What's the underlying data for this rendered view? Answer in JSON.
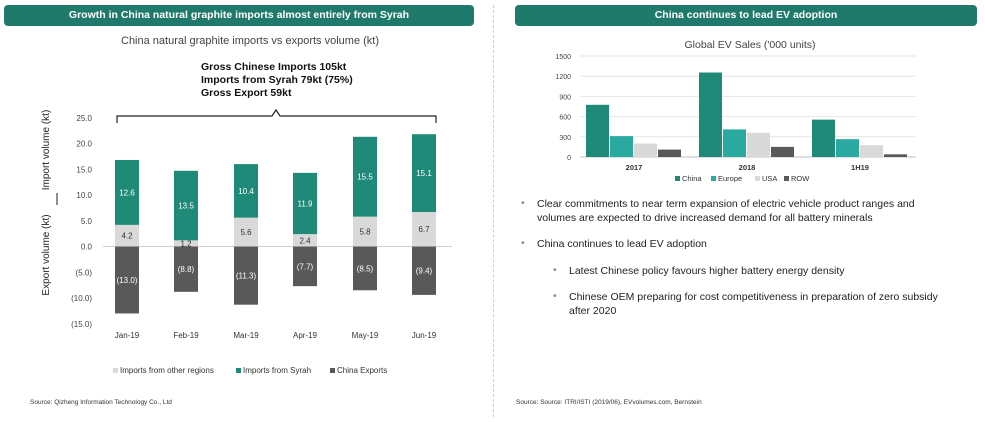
{
  "left_panel": {
    "header": "Growth in China natural graphite imports almost entirely from Syrah",
    "source": "Source:  Qizheng Information Technology Co., Ltd"
  },
  "right_panel": {
    "header": "China continues to lead EV adoption",
    "source": "Source:  Source: ITRI/ISTI (2019/06), EVvolumes.com, Bernstein",
    "bullets": [
      {
        "level": 1,
        "text": "Clear commitments to near term expansion of electric vehicle product ranges and volumes are expected to drive increased demand for all battery minerals"
      },
      {
        "level": 1,
        "text": "China continues to lead EV adoption"
      },
      {
        "level": 2,
        "text": "Latest Chinese policy favours higher battery energy density"
      },
      {
        "level": 2,
        "text": "Chinese OEM preparing for cost competitiveness in preparation of zero subsidy after 2020"
      }
    ]
  },
  "chart_data": [
    {
      "type": "bar",
      "stacked": true,
      "title": "China natural graphite imports vs exports volume (kt)",
      "annotation": [
        "Gross Chinese Imports 105kt",
        "Imports from Syrah 79kt (75%)",
        "Gross Export 59kt"
      ],
      "ylabel_top": "Import volume (kt)",
      "ylabel_bottom": "Export volume (kt)",
      "categories": [
        "Jan-19",
        "Feb-19",
        "Mar-19",
        "Apr-19",
        "May-19",
        "Jun-19"
      ],
      "ylim": [
        -15,
        25
      ],
      "yticks": [
        "25.0",
        "20.0",
        "15.0",
        "10.0",
        "5.0",
        "0.0",
        "(5.0)",
        "(10.0)",
        "(15.0)"
      ],
      "series": [
        {
          "name": "Imports from other regions",
          "color": "#d9d9d9",
          "values": [
            4.2,
            1.2,
            5.6,
            2.4,
            5.8,
            6.7
          ],
          "labels": [
            "4.2",
            "1.2",
            "5.6",
            "2.4",
            "5.8",
            "6.7"
          ]
        },
        {
          "name": "Imports from Syrah",
          "color": "#1f8a78",
          "values": [
            12.6,
            13.5,
            10.4,
            11.9,
            15.5,
            15.1
          ],
          "labels": [
            "12.6",
            "13.5",
            "10.4",
            "11.9",
            "15.5",
            "15.1"
          ]
        },
        {
          "name": "China Exports",
          "color": "#595959",
          "values": [
            -13.0,
            -8.8,
            -11.3,
            -7.7,
            -8.5,
            -9.4
          ],
          "labels": [
            "(13.0)",
            "(8.8)",
            "(11.3)",
            "(7.7)",
            "(8.5)",
            "(9.4)"
          ]
        }
      ],
      "legend": "bottom"
    },
    {
      "type": "bar",
      "title": "Global EV Sales ('000 units)",
      "categories": [
        "2017",
        "2018",
        "1H19"
      ],
      "ylim": [
        0,
        1500
      ],
      "yticks": [
        "1500",
        "1200",
        "900",
        "600",
        "300",
        "0"
      ],
      "series": [
        {
          "name": "China",
          "color": "#1f8a78",
          "values": [
            775,
            1255,
            555
          ]
        },
        {
          "name": "Europe",
          "color": "#2aa9a0",
          "values": [
            310,
            410,
            265
          ]
        },
        {
          "name": "USA",
          "color": "#d9d9d9",
          "values": [
            200,
            360,
            175
          ]
        },
        {
          "name": "ROW",
          "color": "#595959",
          "values": [
            110,
            150,
            40
          ]
        }
      ],
      "legend": "bottom",
      "grid": true
    }
  ]
}
